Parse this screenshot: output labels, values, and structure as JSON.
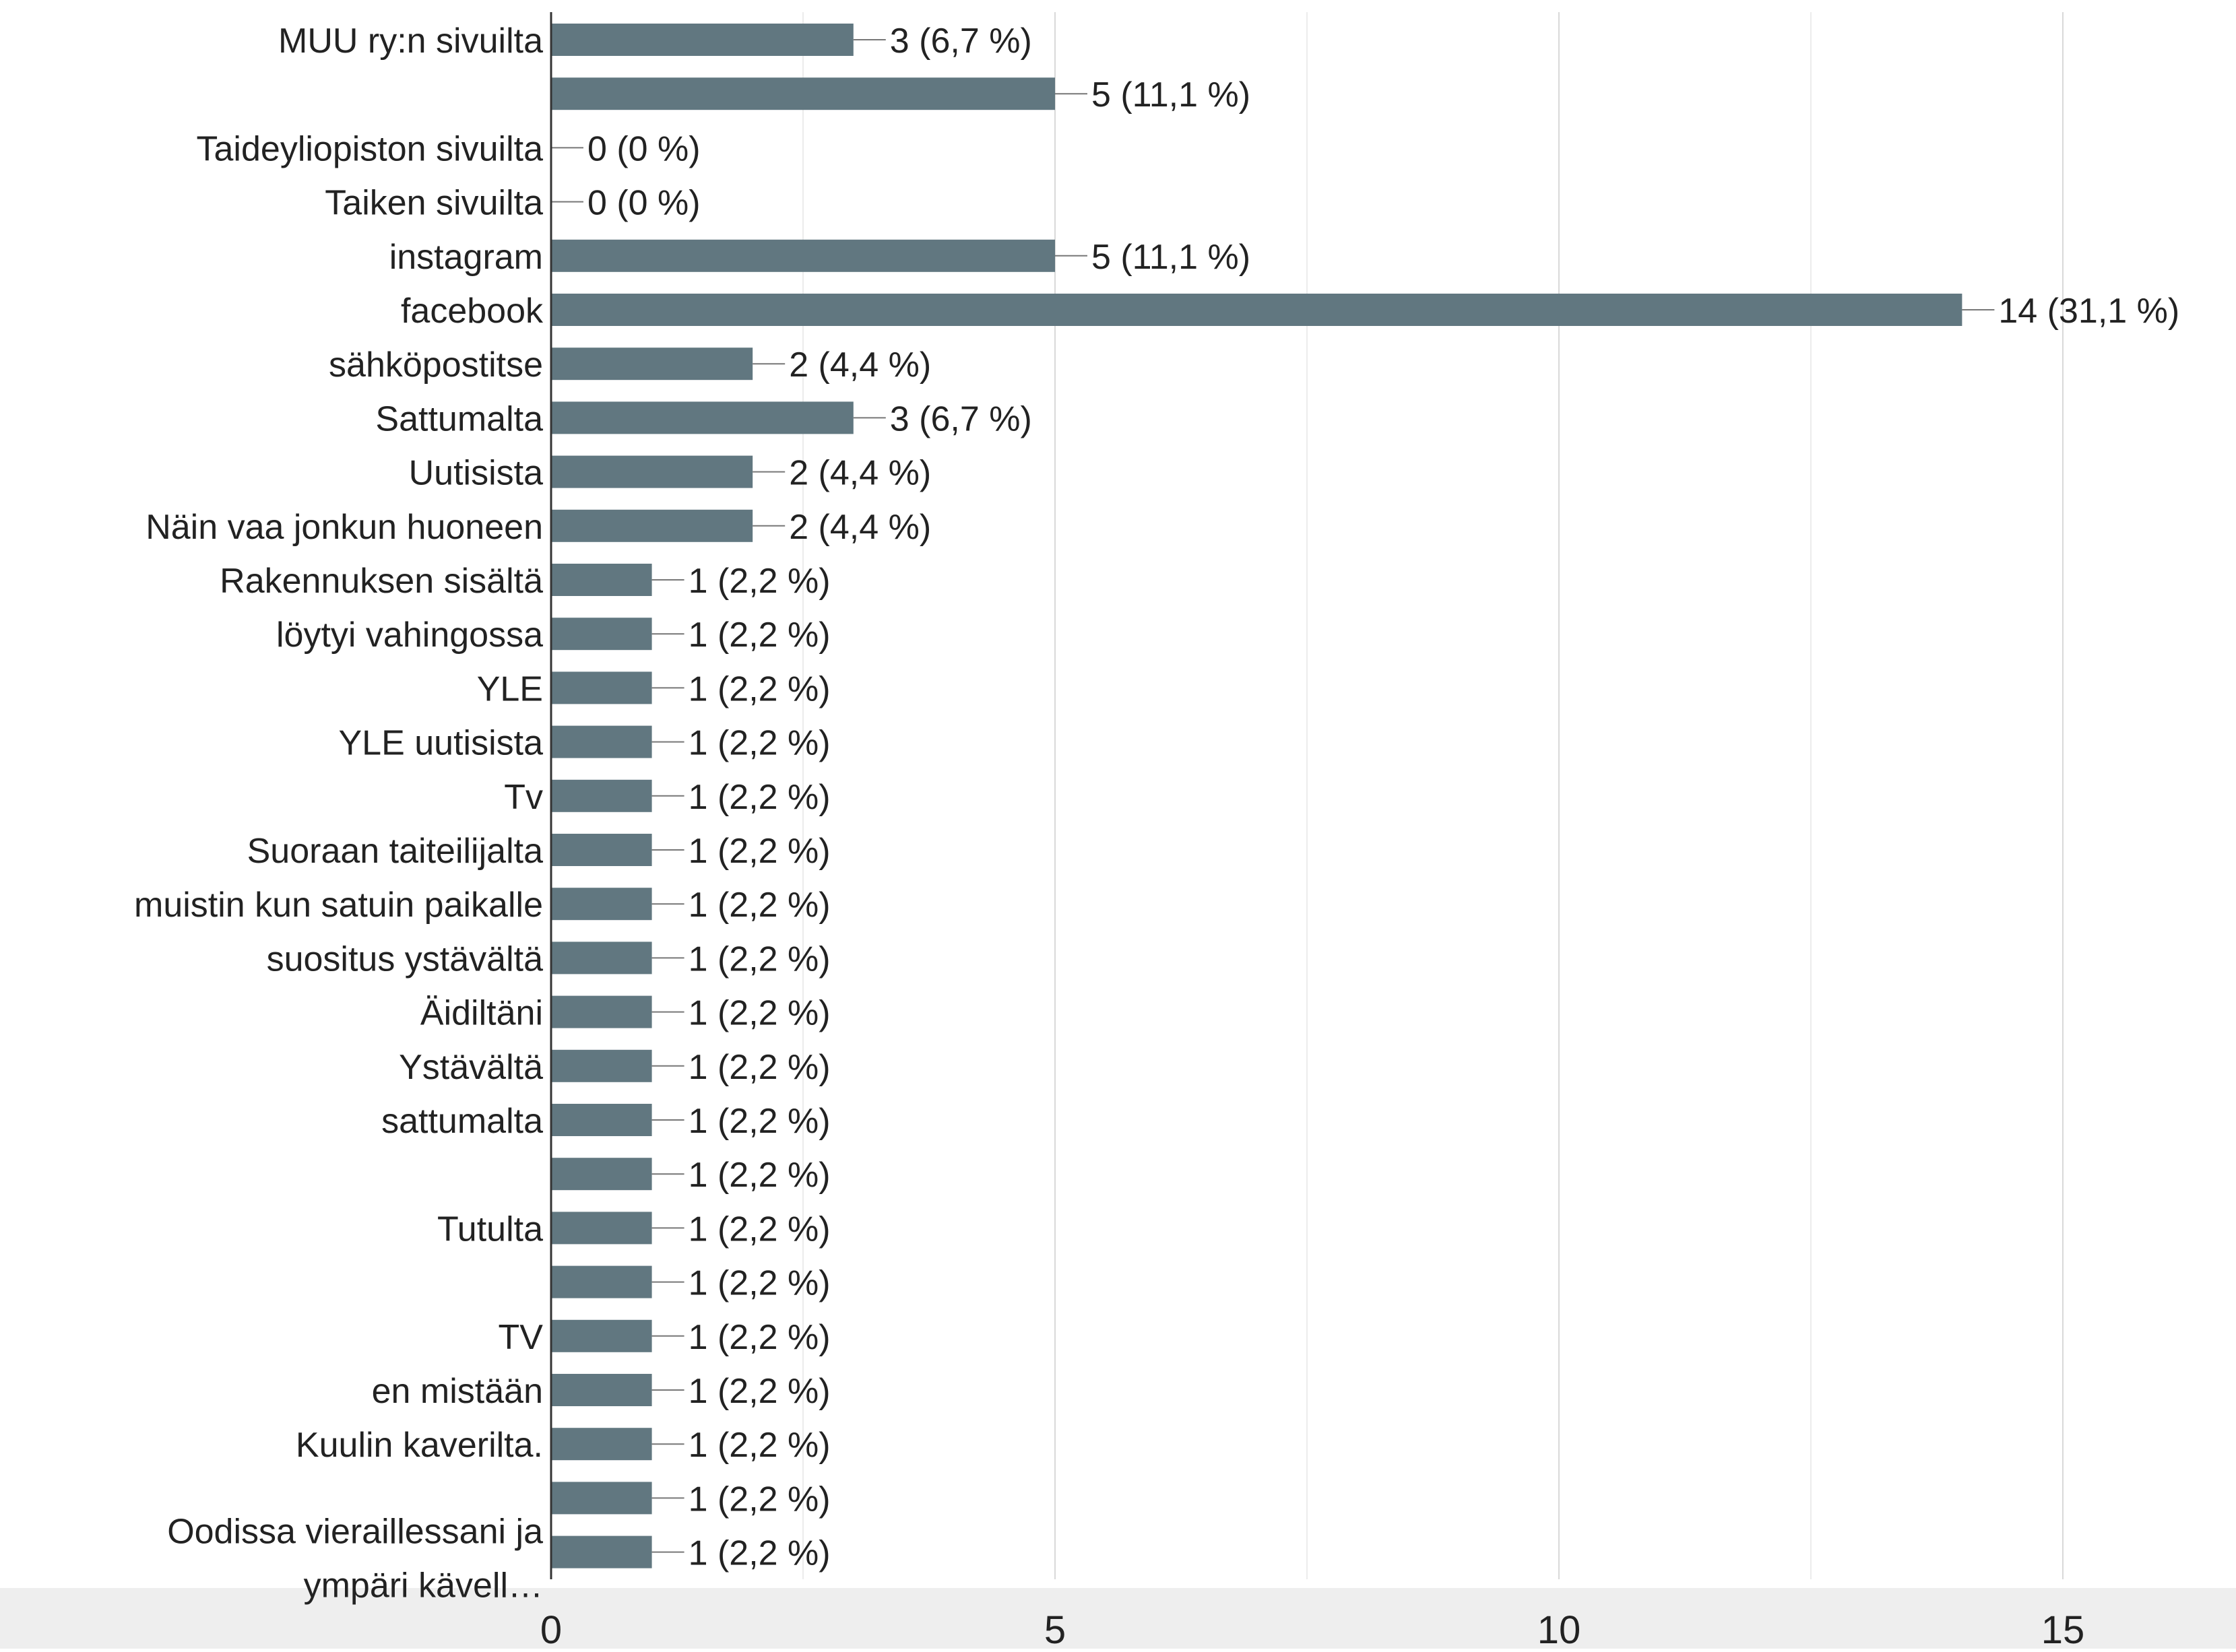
{
  "chart_data": {
    "type": "bar",
    "orientation": "horizontal",
    "title": "",
    "xlabel": "",
    "ylabel": "",
    "xlim": [
      0,
      15
    ],
    "x_ticks": [
      0,
      5,
      10,
      15
    ],
    "grid": true,
    "bar_color": "#617780",
    "categories": [
      "MUU ry:n sivuilta",
      "",
      "Taideyliopiston sivuilta",
      "Taiken sivuilta",
      "instagram",
      "facebook",
      "sähköpostitse",
      "Sattumalta",
      "Uutisista",
      "Näin vaa jonkun huoneen",
      "Rakennuksen sisältä",
      "löytyi vahingossa",
      "YLE",
      "YLE uutisista",
      "Tv",
      "Suoraan taiteilijalta",
      "muistin kun satuin paikalle",
      "suositus ystävältä",
      "Äidiltäni",
      "Ystävältä",
      "sattumalta",
      "",
      "Tutulta",
      "",
      "TV",
      "en mistään",
      "Kuulin kaverilta.",
      "",
      ""
    ],
    "values": [
      3,
      5,
      0,
      0,
      5,
      14,
      2,
      3,
      2,
      2,
      1,
      1,
      1,
      1,
      1,
      1,
      1,
      1,
      1,
      1,
      1,
      1,
      1,
      1,
      1,
      1,
      1,
      1,
      1
    ],
    "value_labels": [
      "3 (6,7 %)",
      "5 (11,1 %)",
      "0 (0 %)",
      "0 (0 %)",
      "5 (11,1 %)",
      "14 (31,1 %)",
      "2 (4,4 %)",
      "3 (6,7 %)",
      "2 (4,4 %)",
      "2 (4,4 %)",
      "1 (2,2 %)",
      "1 (2,2 %)",
      "1 (2,2 %)",
      "1 (2,2 %)",
      "1 (2,2 %)",
      "1 (2,2 %)",
      "1 (2,2 %)",
      "1 (2,2 %)",
      "1 (2,2 %)",
      "1 (2,2 %)",
      "1 (2,2 %)",
      "1 (2,2 %)",
      "1 (2,2 %)",
      "1 (2,2 %)",
      "1 (2,2 %)",
      "1 (2,2 %)",
      "1 (2,2 %)",
      "1 (2,2 %)",
      "1 (2,2 %)"
    ],
    "multiline_label": {
      "lines": [
        "Oodissa vieraillessani ja",
        "ympäri kävell…"
      ]
    }
  }
}
